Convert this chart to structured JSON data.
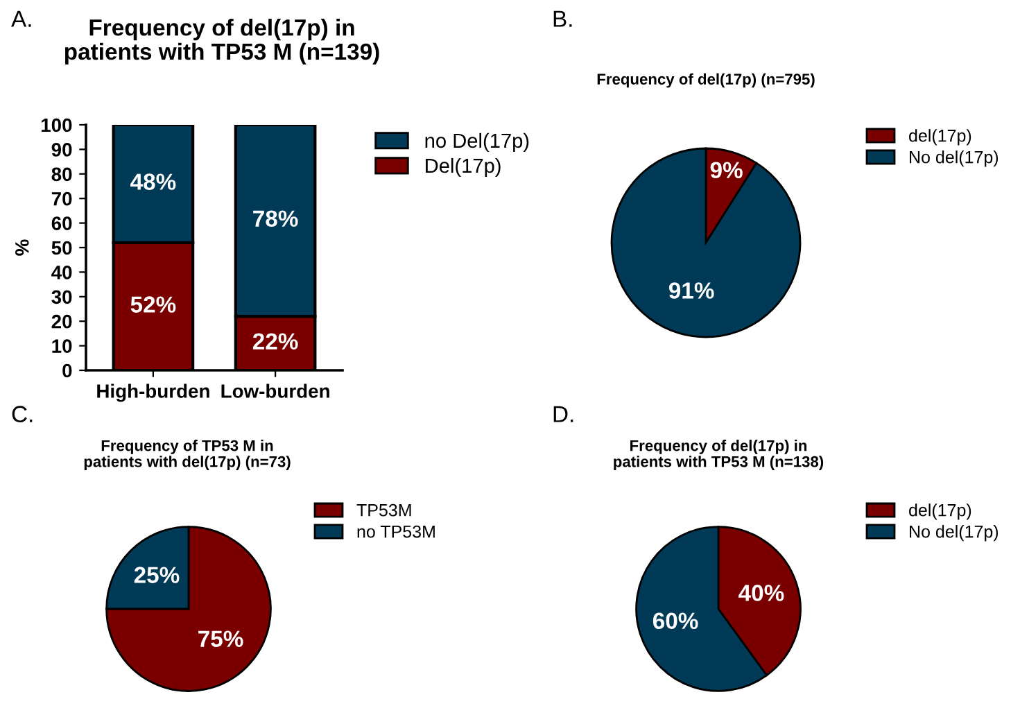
{
  "chart_data": [
    {
      "type": "bar",
      "title": "Frequency of del(17p) in\npatients with TP53 M (n=139)",
      "annotations": [
        "A."
      ],
      "ylabel": "%",
      "categories": [
        "High-burden",
        "Low-burden"
      ],
      "stacked": true,
      "ylim": [
        0,
        100
      ],
      "yticks": [
        0,
        10,
        20,
        30,
        40,
        50,
        60,
        70,
        80,
        90,
        100
      ],
      "grid": false,
      "legend": "right",
      "series": [
        {
          "name": "Del(17p)",
          "color": "#7a0000",
          "values": [
            52,
            22
          ],
          "value_labels": [
            "52%",
            "22%"
          ]
        },
        {
          "name": "no Del(17p)",
          "color": "#003a57",
          "values": [
            48,
            78
          ],
          "value_labels": [
            "48%",
            "78%"
          ]
        }
      ]
    },
    {
      "type": "pie",
      "title": "Frequency of del(17p) (n=795)",
      "annotations": [
        "B."
      ],
      "categories": [
        "del(17p)",
        "No del(17p)"
      ],
      "values": [
        9,
        91
      ],
      "colors": [
        "#7a0000",
        "#003a57"
      ],
      "value_labels": [
        "9%",
        "91%"
      ],
      "legend": "right"
    },
    {
      "type": "pie",
      "title": "Frequency of TP53 M in\npatients with del(17p) (n=73)",
      "annotations": [
        "C."
      ],
      "categories": [
        "TP53M",
        "no TP53M"
      ],
      "values": [
        75,
        25
      ],
      "colors": [
        "#7a0000",
        "#003a57"
      ],
      "value_labels": [
        "75%",
        "25%"
      ],
      "legend": "right"
    },
    {
      "type": "pie",
      "title": "Frequency of del(17p) in\npatients with TP53 M (n=138)",
      "annotations": [
        "D."
      ],
      "categories": [
        "del(17p)",
        "No del(17p)"
      ],
      "values": [
        40,
        60
      ],
      "colors": [
        "#7a0000",
        "#003a57"
      ],
      "value_labels": [
        "40%",
        "60%"
      ],
      "legend": "right"
    }
  ]
}
